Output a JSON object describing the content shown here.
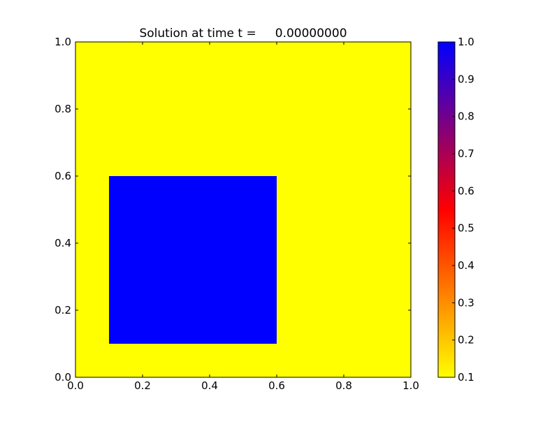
{
  "chart_data": {
    "type": "heatmap",
    "title": "Solution at time t =     0.00000000",
    "xlabel": "",
    "ylabel": "",
    "xlim": [
      0.0,
      1.0
    ],
    "ylim": [
      0.0,
      1.0
    ],
    "xticks": [
      "0.0",
      "0.2",
      "0.4",
      "0.6",
      "0.8",
      "1.0"
    ],
    "yticks": [
      "0.0",
      "0.2",
      "0.4",
      "0.6",
      "0.8",
      "1.0"
    ],
    "grid": false,
    "background_value": 0.1,
    "regions": [
      {
        "x": [
          0.1,
          0.6
        ],
        "y": [
          0.1,
          0.6
        ],
        "value": 1.0
      }
    ],
    "colorbar": {
      "range": [
        0.1,
        1.0
      ],
      "ticks": [
        "0.1",
        "0.2",
        "0.3",
        "0.4",
        "0.5",
        "0.6",
        "0.7",
        "0.8",
        "0.9",
        "1.0"
      ],
      "colormap": [
        {
          "value": 0.1,
          "color": "#ffff00"
        },
        {
          "value": 0.55,
          "color": "#ff0000"
        },
        {
          "value": 1.0,
          "color": "#0000ff"
        }
      ]
    }
  }
}
